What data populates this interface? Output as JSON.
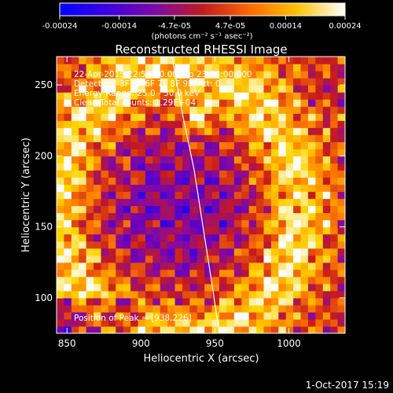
{
  "chart_data": {
    "type": "heatmap",
    "title": "Reconstructed RHESSI Image",
    "xlabel": "Heliocentric X (arcsec)",
    "ylabel": "Heliocentric Y (arcsec)",
    "xlim": [
      843,
      1038
    ],
    "ylim": [
      75,
      270
    ],
    "x_ticks": [
      850,
      900,
      950,
      1000
    ],
    "y_ticks": [
      100,
      150,
      200,
      250
    ],
    "colorbar": {
      "range": [
        -0.00024,
        0.00024
      ],
      "tick_values": [
        -0.00024,
        -0.00014,
        -4.7e-05,
        4.7e-05,
        0.00014,
        0.00024
      ],
      "tick_labels": [
        "-0.00024",
        "-0.00014",
        "-4.7e-05",
        "4.7e-05",
        "0.00014",
        "0.00024"
      ],
      "units_label": "(photons cm⁻² s⁻¹ asec⁻²)",
      "colors": [
        "#0000ff",
        "#5500d0",
        "#8a0a9a",
        "#c71b1b",
        "#ff7a00",
        "#ffd400",
        "#ffffff"
      ]
    },
    "annotations": [
      "22-Apr-2015 22:54:00.000 to 23:04:00.000",
      "Detectors: 3F 5F 6F 7F 8F 9F, Att: 0",
      "Energy Range: 25.0 - 50.0 keV",
      "Clean    Total counts: 1.29E+04"
    ],
    "peak_label": "Position of Peak = [938,226]",
    "peak": [
      938,
      226
    ],
    "limb_curve": [
      [
        921,
        270
      ],
      [
        928,
        230
      ],
      [
        936,
        190
      ],
      [
        942,
        150
      ],
      [
        948,
        110
      ],
      [
        953,
        75
      ]
    ],
    "grid": false
  },
  "footer": {
    "date": "1-Oct-2017 15:19"
  }
}
